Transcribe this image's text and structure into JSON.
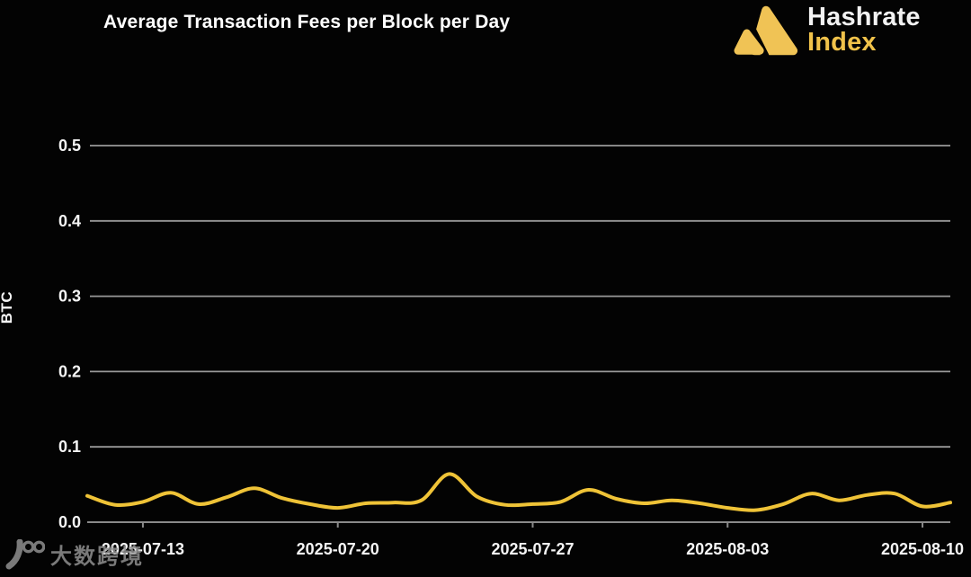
{
  "title": "Average Transaction Fees per Block per Day",
  "logo": {
    "line1": "Hashrate",
    "line2": "Index",
    "gold": "#f0c24a"
  },
  "watermark": {
    "text": "大数跨境"
  },
  "colors": {
    "background": "#030303",
    "title_text": "#ffffff",
    "grid": "#999999",
    "axis": "#8a8a8a",
    "tick_text": "#f5f5f5",
    "line": "#efc337",
    "logo_gold": "#f0c24a",
    "watermark_gray": "#8f8f8f"
  },
  "chart_data": {
    "type": "line",
    "title": "Average Transaction Fees per Block per Day",
    "xlabel": "",
    "ylabel": "BTC",
    "ylim": [
      0,
      0.55
    ],
    "y_ticks": [
      0.0,
      0.1,
      0.2,
      0.3,
      0.4,
      0.5
    ],
    "grid": "horizontal",
    "legend": false,
    "line_color": "#efc337",
    "x": [
      "2025-07-11",
      "2025-07-12",
      "2025-07-13",
      "2025-07-14",
      "2025-07-15",
      "2025-07-16",
      "2025-07-17",
      "2025-07-18",
      "2025-07-19",
      "2025-07-20",
      "2025-07-21",
      "2025-07-22",
      "2025-07-23",
      "2025-07-24",
      "2025-07-25",
      "2025-07-26",
      "2025-07-27",
      "2025-07-28",
      "2025-07-29",
      "2025-07-30",
      "2025-07-31",
      "2025-08-01",
      "2025-08-02",
      "2025-08-03",
      "2025-08-04",
      "2025-08-05",
      "2025-08-06",
      "2025-08-07",
      "2025-08-08",
      "2025-08-09",
      "2025-08-10",
      "2025-08-11"
    ],
    "values": [
      0.035,
      0.023,
      0.027,
      0.039,
      0.024,
      0.033,
      0.045,
      0.032,
      0.024,
      0.019,
      0.025,
      0.026,
      0.029,
      0.064,
      0.034,
      0.023,
      0.024,
      0.027,
      0.043,
      0.031,
      0.025,
      0.029,
      0.025,
      0.019,
      0.016,
      0.024,
      0.038,
      0.029,
      0.036,
      0.038,
      0.021,
      0.026
    ],
    "x_tick_labels": [
      "2025-07-13",
      "2025-07-20",
      "2025-07-27",
      "2025-08-03",
      "2025-08-10"
    ]
  }
}
